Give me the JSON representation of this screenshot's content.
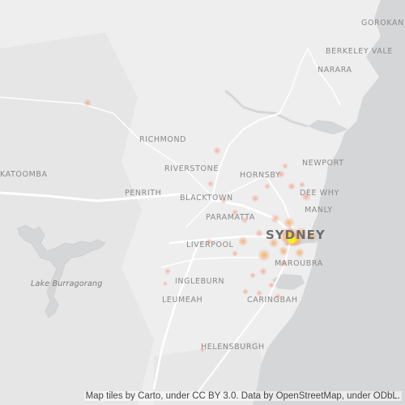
{
  "map": {
    "basemap_style": "light-gray",
    "colors": {
      "land": "#eeeeee",
      "ocean": "#d5d6d8",
      "lake": "#d5d6d8",
      "roads": "#ffffff",
      "label": "#8a8a8a",
      "heat_low": "#f29a84",
      "heat_mid": "#f6b24f",
      "heat_high": "#f5ea2c"
    },
    "labels": {
      "gorokan": "GOROKAN",
      "berkeley_vale": "BERKELEY VALE",
      "narara": "NARARA",
      "richmond": "RICHMOND",
      "newport": "NEWPORT",
      "riverstone": "RIVERSTONE",
      "hornsby": "HORNSBY",
      "katoomba": "KATOOMBA",
      "penrith": "PENRITH",
      "blacktown": "BLACKTOWN",
      "dee_why": "DEE WHY",
      "manly": "MANLY",
      "paramatta": "PARAMATTA",
      "sydney": "SYDNEY",
      "liverpool": "LIVERPOOL",
      "maroubra": "MAROUBRA",
      "lake_burragorang": "Lake Burragorang",
      "ingleburn": "INGLEBURN",
      "leumeah": "LEUMEAH",
      "caringbah": "CARINGBAH",
      "helensburgh": "HELENSBURGH"
    },
    "attribution": "Map tiles by Carto, under CC BY 3.0. Data by OpenStreetMap, under ODbL."
  }
}
